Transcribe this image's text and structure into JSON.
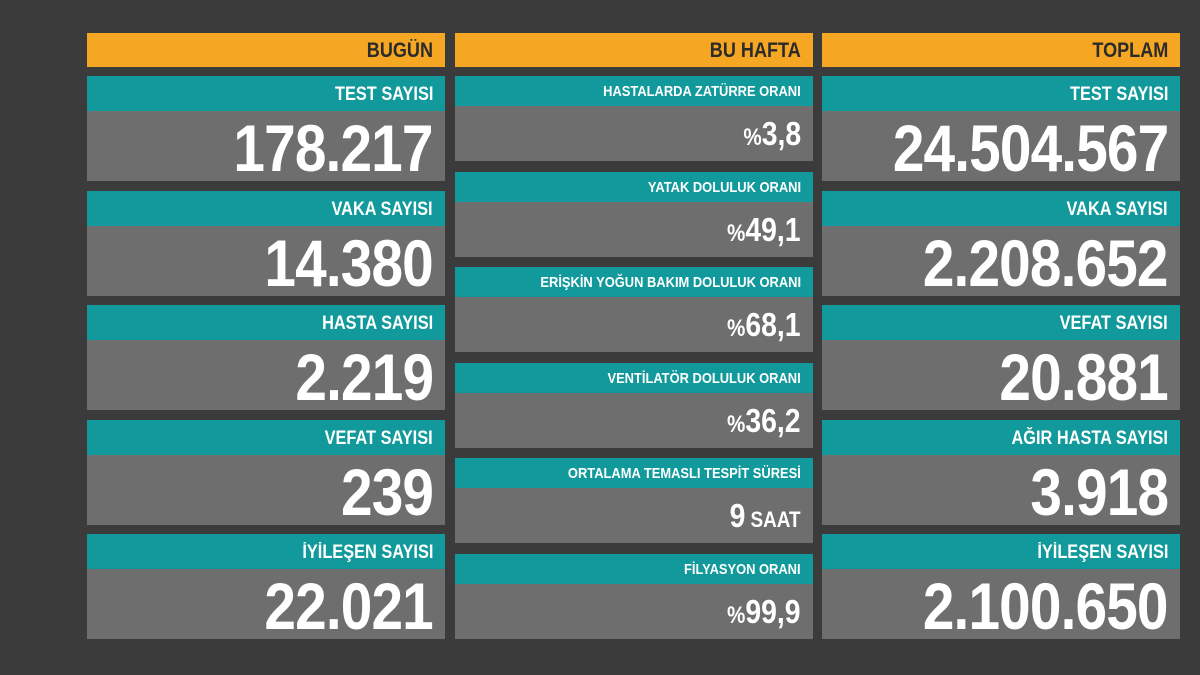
{
  "columns": [
    {
      "title": "BUGÜN",
      "items": [
        {
          "label": "TEST SAYISI",
          "value": "178.217"
        },
        {
          "label": "VAKA SAYISI",
          "value": "14.380"
        },
        {
          "label": "HASTA SAYISI",
          "value": "2.219"
        },
        {
          "label": "VEFAT SAYISI",
          "value": "239"
        },
        {
          "label": "İYİLEŞEN SAYISI",
          "value": "22.021"
        }
      ]
    },
    {
      "title": "BU HAFTA",
      "items": [
        {
          "label": "HASTALARDA ZATÜRRE ORANI",
          "prefix": "%",
          "value": "3,8"
        },
        {
          "label": "YATAK DOLULUK ORANI",
          "prefix": "%",
          "value": "49,1"
        },
        {
          "label": "ERİŞKİN YOĞUN BAKIM DOLULUK ORANI",
          "prefix": "%",
          "value": "68,1"
        },
        {
          "label": "VENTİLATÖR DOLULUK ORANI",
          "prefix": "%",
          "value": "36,2"
        },
        {
          "label": "ORTALAMA TEMASLI TESPİT SÜRESİ",
          "value": "9",
          "unit": "SAAT"
        },
        {
          "label": "FİLYASYON ORANI",
          "prefix": "%",
          "value": "99,9"
        }
      ]
    },
    {
      "title": "TOPLAM",
      "items": [
        {
          "label": "TEST SAYISI",
          "value": "24.504.567"
        },
        {
          "label": "VAKA SAYISI",
          "value": "2.208.652"
        },
        {
          "label": "VEFAT SAYISI",
          "value": "20.881"
        },
        {
          "label": "AĞIR HASTA SAYISI",
          "value": "3.918"
        },
        {
          "label": "İYİLEŞEN SAYISI",
          "value": "2.100.650"
        }
      ]
    }
  ]
}
